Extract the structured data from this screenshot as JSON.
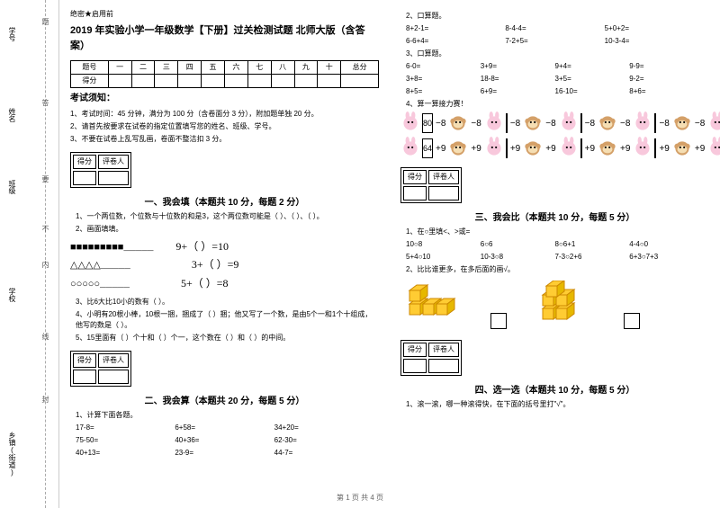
{
  "secret": "绝密★启用前",
  "title": "2019 年实验小学一年级数学【下册】过关检测试题  北师大版（含答案）",
  "score_headers": [
    "题号",
    "一",
    "二",
    "三",
    "四",
    "五",
    "六",
    "七",
    "八",
    "九",
    "十",
    "总分"
  ],
  "score_row_label": "得分",
  "exam_notice_title": "考试须知：",
  "exam_notices": [
    "1、考试时间：45 分钟，满分为 100 分（含卷面分 3 分），附加题单独 20 分。",
    "2、请首先按要求在试卷的指定位置填写您的姓名、班级、学号。",
    "3、不要在试卷上乱写乱画，卷面不整洁扣 3 分。"
  ],
  "grader": {
    "score": "得分",
    "marker": "评卷人"
  },
  "section1": {
    "title": "一、我会填（本题共 10 分，每题 2 分）"
  },
  "q1_1": "1、一个两位数，个位数与十位数的和是3，这个两位数可能是（    ）、（    ）、（    ）。",
  "q1_2": "2、画面填填。",
  "shape_lines": {
    "sq": "■■■■■■■■■_____",
    "tri": "△△△△_____",
    "cir": "○○○○○_____"
  },
  "shape_eqs": {
    "a": "9+（      ）=10",
    "b": "3+（      ）=9",
    "c": "5+（      ）=8"
  },
  "q1_3": "3、比6大比10小的数有（                    ）。",
  "q1_4": "4、小明有20根小棒，10根一捆，捆成了（   ）捆；他又写了一个数，是由5个一和1个十组成，他写的数是（   ）。",
  "q1_5": "5、15里面有（      ）个十和（      ）个一，这个数在（      ）和（      ）的中间。",
  "section2": {
    "title": "二、我会算（本题共 20 分，每题 5 分）"
  },
  "q2_1": "1、计算下面各题。",
  "calc_rows": [
    [
      "17-8=",
      "6+58=",
      "34+20="
    ],
    [
      "75-50=",
      "40+36=",
      "62-30="
    ],
    [
      "40+13=",
      "23-9=",
      "44-7="
    ]
  ],
  "q2_2": "2、口算题。",
  "oral2": [
    [
      "8+2-1=",
      "8-4-4=",
      "5+0+2="
    ],
    [
      "6-6+4=",
      "7-2+5=",
      "10-3-4="
    ]
  ],
  "q2_3": "3、口算题。",
  "oral3": [
    [
      "6-0=",
      "3+9=",
      "9+4=",
      "9-9="
    ],
    [
      "3+8=",
      "18-8=",
      "3+5=",
      "9-2="
    ],
    [
      "8+5=",
      "6+9=",
      "16-10=",
      "8+6="
    ]
  ],
  "q2_4": "4、算一算接力赛！",
  "relay": {
    "start1": "80",
    "start2": "64",
    "op_minus": "−8",
    "op_plus": "+9"
  },
  "section3": {
    "title": "三、我会比（本题共 10 分，每题 5 分）"
  },
  "q3_1": "1、在○里填<、>或=",
  "compare_rows": [
    [
      "10○8",
      "6○6",
      "8○6+1",
      "4-4○0"
    ],
    [
      "5+4○10",
      "10-3○8",
      "7-3○2+6",
      "6+3○7+3"
    ]
  ],
  "q3_2": "2、比比谁更多，在多后面的画√。",
  "section4": {
    "title": "四、选一选（本题共 10 分，每题 5 分）"
  },
  "q4_1": "1、滚一滚，哪一种滚得快，在下面的括号里打\"√\"。",
  "sidebar": {
    "labels": [
      "学号",
      "姓名",
      "班级",
      "学校",
      "乡镇(街道)"
    ],
    "cuts": [
      "题",
      "答",
      "要",
      "不",
      "内",
      "线",
      "封"
    ]
  },
  "footer": "第 1 页  共 4 页",
  "colors": {
    "cube_fill": "#ffcc33",
    "cube_stroke": "#cc8800",
    "rabbit": "#f8c8dc",
    "monkey": "#d4a068"
  }
}
